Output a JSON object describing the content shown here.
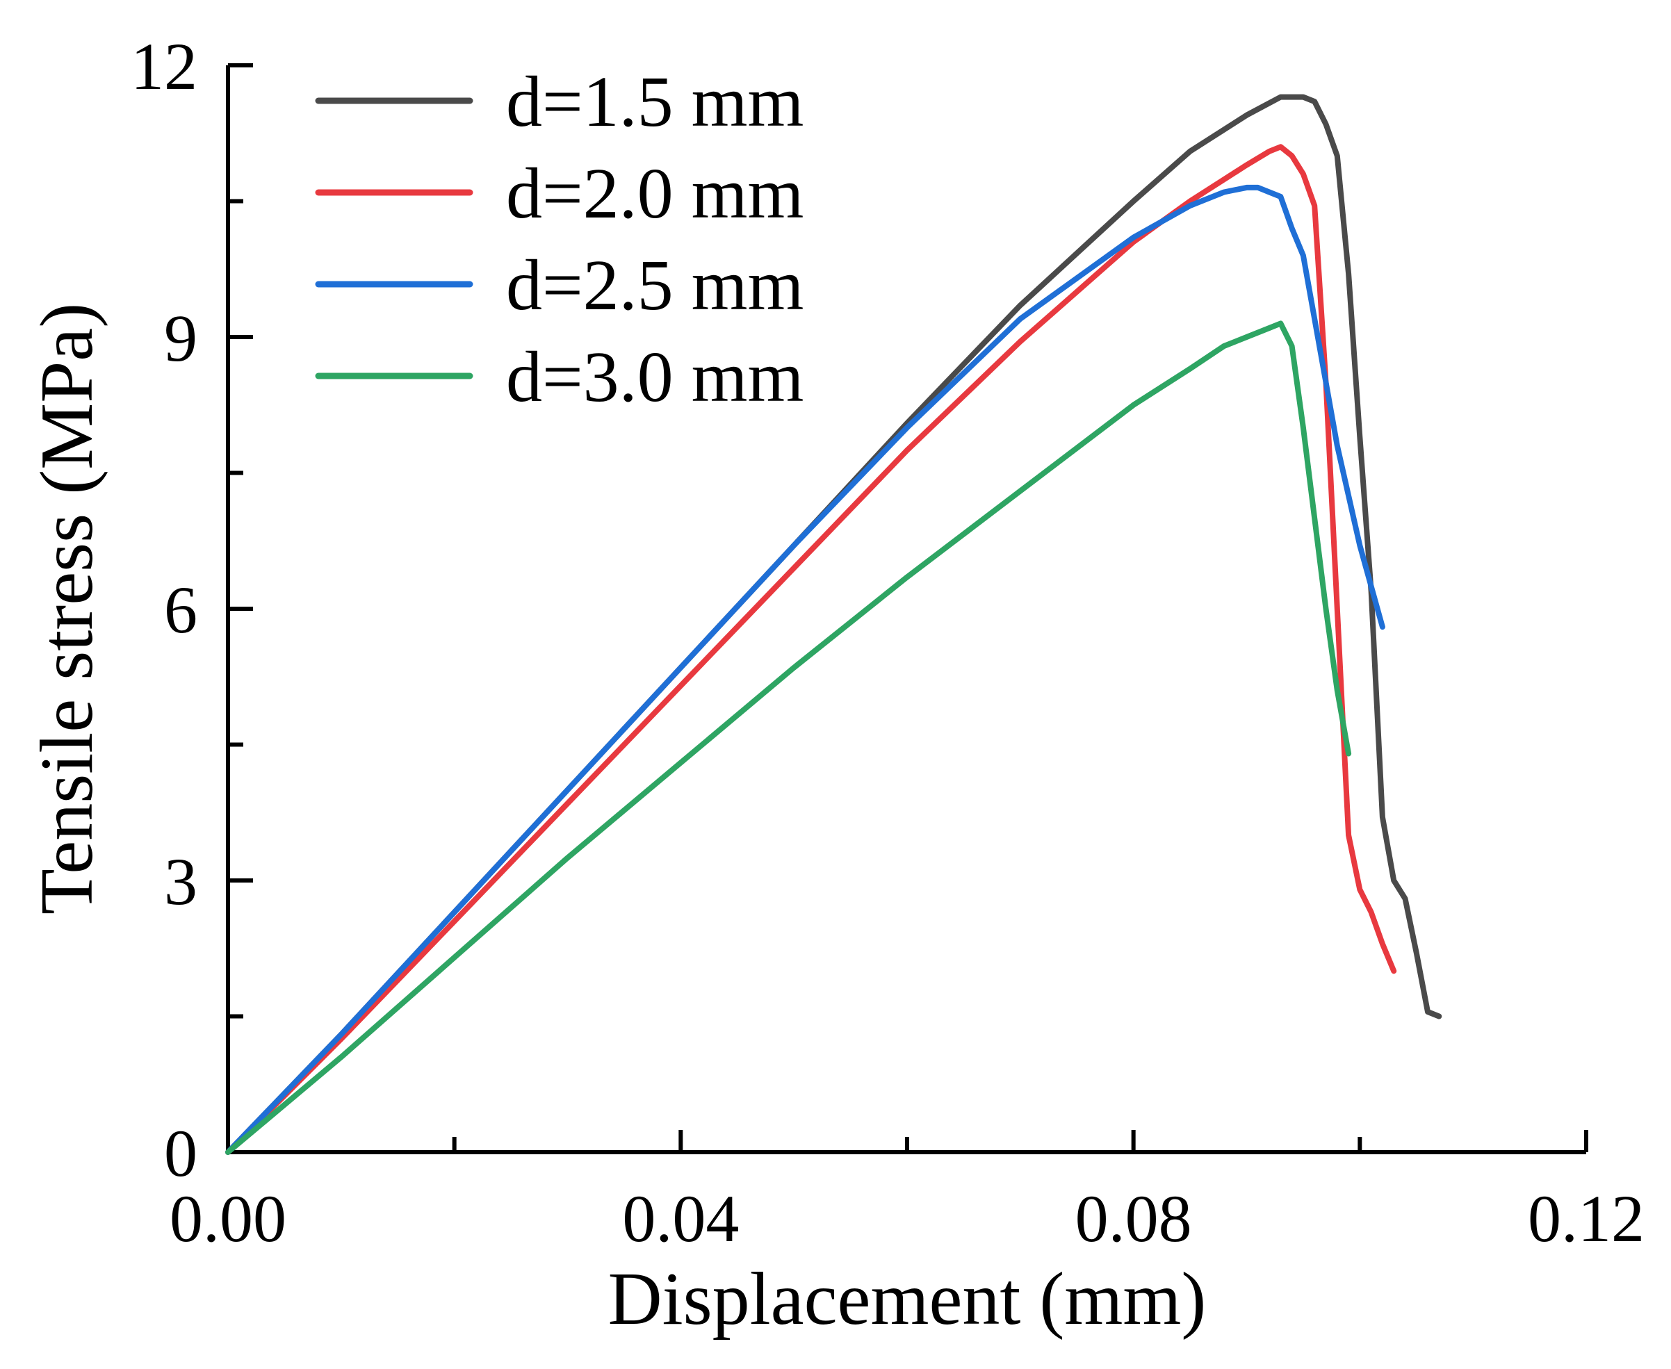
{
  "chart_data": {
    "type": "line",
    "title": "",
    "xlabel": "Displacement (mm)",
    "ylabel": "Tensile stress (MPa)",
    "xlim": [
      0,
      0.12
    ],
    "ylim": [
      0,
      12
    ],
    "x_ticks": [
      0.0,
      0.04,
      0.08,
      0.12
    ],
    "x_tick_labels": [
      "0.00",
      "0.04",
      "0.08",
      "0.12"
    ],
    "x_minor_ticks": [
      0.02,
      0.06,
      0.1
    ],
    "y_ticks": [
      0,
      3,
      6,
      9,
      12
    ],
    "y_tick_labels": [
      "0",
      "3",
      "6",
      "9",
      "12"
    ],
    "y_minor_ticks": [
      1.5,
      4.5,
      7.5,
      10.5
    ],
    "grid": false,
    "legend_position": "top-left",
    "series": [
      {
        "name": "d=1.5 mm",
        "color": "#4a4a4a",
        "x": [
          0,
          0.01,
          0.02,
          0.03,
          0.04,
          0.05,
          0.06,
          0.07,
          0.08,
          0.085,
          0.09,
          0.093,
          0.095,
          0.096,
          0.097,
          0.098,
          0.099,
          0.1,
          0.101,
          0.102,
          0.103,
          0.104,
          0.105,
          0.106,
          0.107
        ],
        "y": [
          0,
          1.3,
          2.65,
          4.0,
          5.35,
          6.7,
          8.05,
          9.35,
          10.5,
          11.05,
          11.45,
          11.65,
          11.65,
          11.6,
          11.35,
          11.0,
          9.7,
          7.9,
          6.2,
          3.7,
          3.0,
          2.8,
          2.2,
          1.55,
          1.5
        ]
      },
      {
        "name": "d=2.0 mm",
        "color": "#e8393f",
        "x": [
          0,
          0.01,
          0.02,
          0.03,
          0.04,
          0.05,
          0.06,
          0.07,
          0.08,
          0.085,
          0.09,
          0.092,
          0.093,
          0.094,
          0.095,
          0.096,
          0.097,
          0.098,
          0.099,
          0.1,
          0.101,
          0.102,
          0.103
        ],
        "y": [
          0,
          1.25,
          2.55,
          3.85,
          5.15,
          6.45,
          7.75,
          8.95,
          10.05,
          10.5,
          10.9,
          11.05,
          11.1,
          11.0,
          10.8,
          10.45,
          8.5,
          6.0,
          3.5,
          2.9,
          2.65,
          2.3,
          2.0
        ]
      },
      {
        "name": "d=2.5 mm",
        "color": "#1f6fd6",
        "x": [
          0,
          0.01,
          0.02,
          0.03,
          0.04,
          0.05,
          0.06,
          0.07,
          0.08,
          0.085,
          0.088,
          0.09,
          0.091,
          0.092,
          0.093,
          0.094,
          0.095,
          0.096,
          0.098,
          0.1,
          0.102
        ],
        "y": [
          0,
          1.3,
          2.65,
          4.0,
          5.35,
          6.7,
          8.0,
          9.2,
          10.1,
          10.45,
          10.6,
          10.65,
          10.65,
          10.6,
          10.55,
          10.2,
          9.9,
          9.2,
          7.8,
          6.7,
          5.8
        ]
      },
      {
        "name": "d=3.0 mm",
        "color": "#2ea563",
        "x": [
          0,
          0.01,
          0.02,
          0.03,
          0.04,
          0.05,
          0.06,
          0.07,
          0.08,
          0.085,
          0.088,
          0.09,
          0.092,
          0.093,
          0.094,
          0.095,
          0.096,
          0.097,
          0.098,
          0.099
        ],
        "y": [
          0,
          1.05,
          2.15,
          3.25,
          4.3,
          5.35,
          6.35,
          7.3,
          8.25,
          8.65,
          8.9,
          9.0,
          9.1,
          9.15,
          8.9,
          8.0,
          7.0,
          6.0,
          5.1,
          4.4
        ]
      }
    ]
  }
}
